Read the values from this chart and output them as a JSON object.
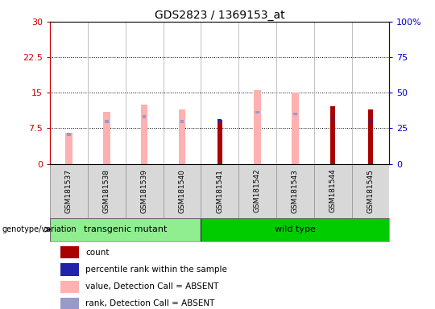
{
  "title": "GDS2823 / 1369153_at",
  "samples": [
    "GSM181537",
    "GSM181538",
    "GSM181539",
    "GSM181540",
    "GSM181541",
    "GSM181542",
    "GSM181543",
    "GSM181544",
    "GSM181545"
  ],
  "groups": [
    "transgenic mutant",
    "transgenic mutant",
    "transgenic mutant",
    "transgenic mutant",
    "wild type",
    "wild type",
    "wild type",
    "wild type",
    "wild type"
  ],
  "group_label": "genotype/variation",
  "pink_bar_heights": [
    6.5,
    11.0,
    12.5,
    11.5,
    0.0,
    15.5,
    15.0,
    0.0,
    0.0
  ],
  "red_bar_heights": [
    0.0,
    0.0,
    0.0,
    0.0,
    9.2,
    0.0,
    0.0,
    12.2,
    11.5
  ],
  "blue_bar_heights": [
    6.5,
    9.2,
    10.2,
    9.2,
    9.4,
    11.2,
    10.8,
    9.8,
    9.2
  ],
  "blue_is_dark": [
    false,
    false,
    false,
    false,
    true,
    false,
    false,
    true,
    true
  ],
  "ylim_left": [
    0,
    30
  ],
  "ylim_right": [
    0,
    100
  ],
  "yticks_left": [
    0,
    7.5,
    15,
    22.5,
    30
  ],
  "yticks_right": [
    0,
    25,
    50,
    75,
    100
  ],
  "ytick_labels_left": [
    "0",
    "7.5",
    "15",
    "22.5",
    "30"
  ],
  "ytick_labels_right": [
    "0",
    "25",
    "50",
    "75",
    "100%"
  ],
  "left_axis_color": "#cc0000",
  "right_axis_color": "#0000cc",
  "pink_color": "#ffb0b0",
  "red_color": "#aa0000",
  "blue_dark_color": "#2222aa",
  "blue_light_color": "#9999cc",
  "cell_bg_color": "#d8d8d8",
  "plot_bg_color": "#ffffff",
  "group1_color": "#90ee90",
  "group2_color": "#00cc00",
  "legend_items": [
    {
      "label": "count",
      "color": "#aa0000"
    },
    {
      "label": "percentile rank within the sample",
      "color": "#2222aa"
    },
    {
      "label": "value, Detection Call = ABSENT",
      "color": "#ffb0b0"
    },
    {
      "label": "rank, Detection Call = ABSENT",
      "color": "#9999cc"
    }
  ]
}
